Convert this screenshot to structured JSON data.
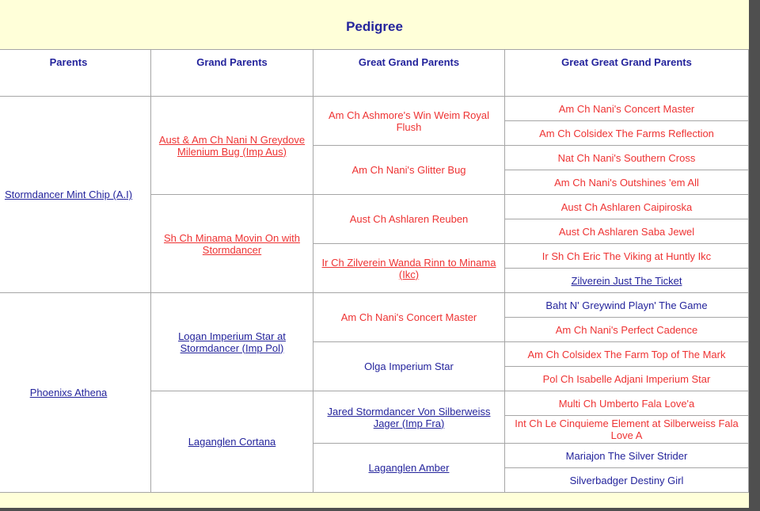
{
  "title": "Pedigree",
  "columns": [
    "Parents",
    "Grand Parents",
    "Great Grand Parents",
    "Great Great Grand Parents"
  ],
  "colors": {
    "page_background": "#FFFFD9",
    "cell_background": "#FFFFFF",
    "table_border": "#A6A6A6",
    "navy_text": "#24249C",
    "red_text": "#EE3333",
    "frame_edge": "#4F4F4F"
  },
  "pedigree": {
    "parents": [
      {
        "label": "Stormdancer Mint Chip (A.I)"
      },
      {
        "label": "Phoenixs Athena"
      }
    ],
    "grand_parents": [
      {
        "label": "Aust & Am Ch Nani N Greydove Milenium Bug (Imp Aus)"
      },
      {
        "label": "Sh Ch Minama Movin On with Stormdancer"
      },
      {
        "label": "Logan Imperium Star at Stormdancer (Imp Pol)"
      },
      {
        "label": "Laganglen Cortana"
      }
    ],
    "great_grand_parents": [
      {
        "label": "Am Ch Ashmore's Win Weim Royal Flush"
      },
      {
        "label": "Am Ch Nani's Glitter Bug"
      },
      {
        "label": "Aust Ch Ashlaren Reuben"
      },
      {
        "label": "Ir Ch Zilverein Wanda Rinn to Minama (Ikc)"
      },
      {
        "label": "Am Ch Nani's Concert Master"
      },
      {
        "label": "Olga Imperium Star"
      },
      {
        "label": "Jared Stormdancer Von Silberweiss Jager (Imp Fra)"
      },
      {
        "label": "Laganglen Amber"
      }
    ],
    "great_great_grand_parents": [
      {
        "label": "Am Ch Nani's Concert Master"
      },
      {
        "label": "Am Ch Colsidex The Farms Reflection"
      },
      {
        "label": "Nat Ch Nani's Southern Cross"
      },
      {
        "label": "Am Ch Nani's Outshines 'em All"
      },
      {
        "label": "Aust Ch Ashlaren Caipiroska"
      },
      {
        "label": "Aust Ch Ashlaren Saba Jewel"
      },
      {
        "label": "Ir Sh Ch Eric The Viking at Huntly Ikc"
      },
      {
        "label": "Zilverein Just The Ticket"
      },
      {
        "label": "Baht N' Greywind Playn' The Game"
      },
      {
        "label": "Am Ch Nani's Perfect Cadence"
      },
      {
        "label": "Am Ch Colsidex The Farm Top of The Mark"
      },
      {
        "label": "Pol Ch Isabelle Adjani Imperium Star"
      },
      {
        "label": "Multi Ch Umberto Fala Love'a"
      },
      {
        "label": "Int Ch Le Cinquieme Element at Silberweiss Fala Love A"
      },
      {
        "label": "Mariajon The Silver Strider"
      },
      {
        "label": "Silverbadger Destiny Girl"
      }
    ]
  }
}
